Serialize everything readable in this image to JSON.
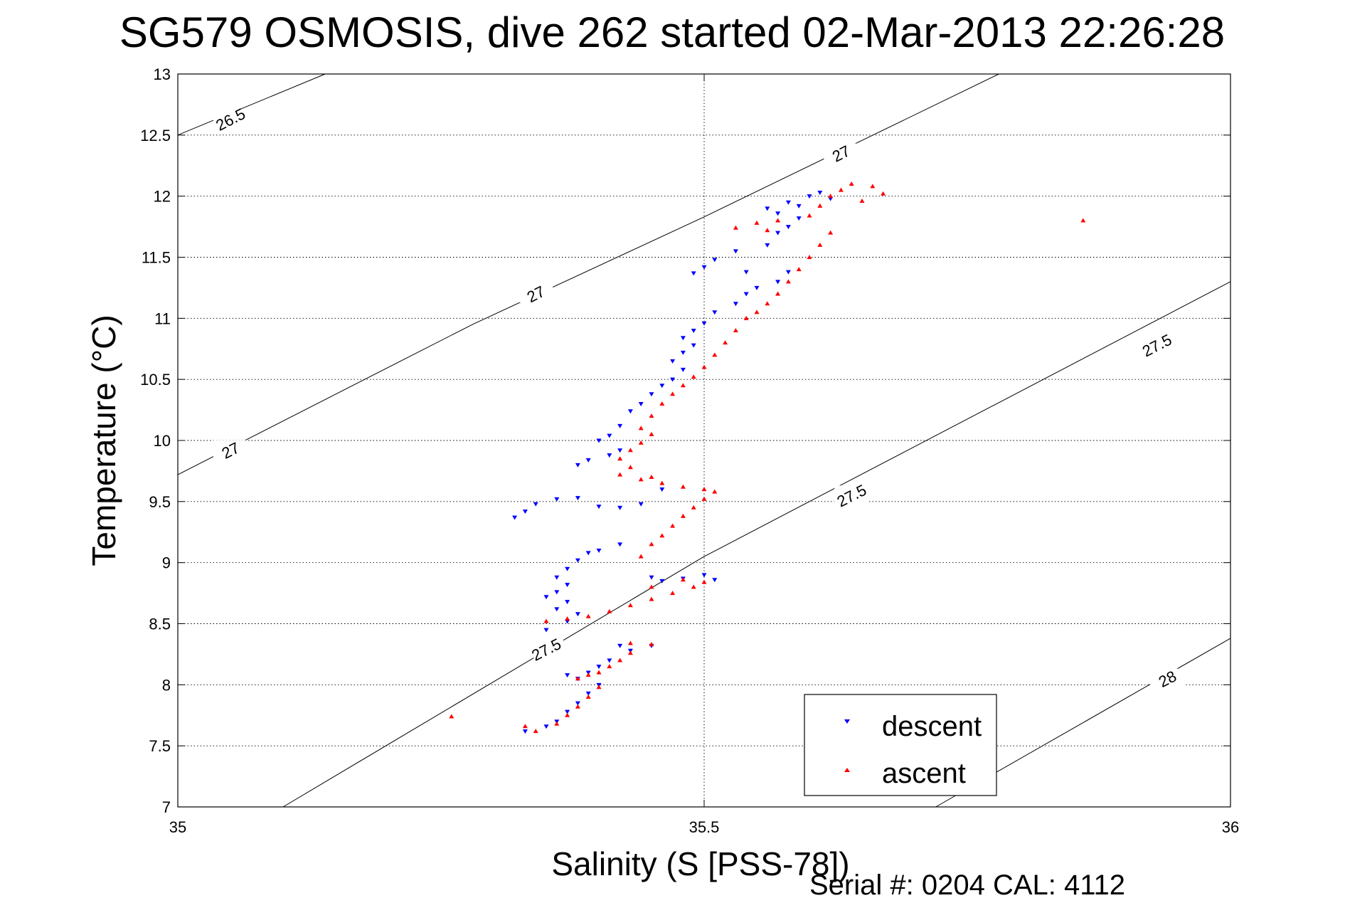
{
  "chart_data": {
    "type": "scatter",
    "title": "SG579 OSMOSIS, dive 262 started 02-Mar-2013 22:26:28",
    "xlabel": "Salinity (S [PSS-78])",
    "ylabel": "Temperature (°C)",
    "xlim": [
      35,
      36
    ],
    "ylim": [
      7,
      13
    ],
    "x_ticks": [
      "35",
      "35.5",
      "36"
    ],
    "y_ticks": [
      "7",
      "7.5",
      "8",
      "8.5",
      "9",
      "9.5",
      "10",
      "10.5",
      "11",
      "11.5",
      "12",
      "12.5",
      "13"
    ],
    "grid": true,
    "legend_position": "bottom-right",
    "footer": "Serial #: 0204  CAL: 4112",
    "density_contours": [
      {
        "level": "26.5",
        "label_positions": [
          [
            35.05,
            12.63
          ]
        ],
        "points": [
          [
            35.0,
            12.5
          ],
          [
            35.14,
            13.0
          ]
        ]
      },
      {
        "level": "27",
        "label_positions": [
          [
            35.05,
            9.92
          ],
          [
            35.34,
            11.2
          ],
          [
            35.63,
            12.35
          ]
        ],
        "points": [
          [
            35.0,
            9.72
          ],
          [
            35.28,
            10.95
          ],
          [
            35.5,
            11.83
          ],
          [
            35.78,
            13.0
          ]
        ]
      },
      {
        "level": "27.5",
        "label_positions": [
          [
            35.35,
            8.29
          ],
          [
            35.64,
            9.55
          ],
          [
            35.93,
            10.78
          ]
        ],
        "points": [
          [
            35.1,
            7.0
          ],
          [
            35.5,
            9.05
          ],
          [
            36.0,
            11.3
          ]
        ]
      },
      {
        "level": "28",
        "label_positions": [
          [
            35.94,
            8.05
          ]
        ],
        "points": [
          [
            35.72,
            7.0
          ],
          [
            36.0,
            8.38
          ]
        ]
      }
    ],
    "series": [
      {
        "name": "descent",
        "color": "#0000ff",
        "marker": "triangle-down",
        "points": [
          [
            35.33,
            7.62
          ],
          [
            35.35,
            7.66
          ],
          [
            35.36,
            7.7
          ],
          [
            35.37,
            7.78
          ],
          [
            35.38,
            7.85
          ],
          [
            35.39,
            7.93
          ],
          [
            35.4,
            8.0
          ],
          [
            35.38,
            8.05
          ],
          [
            35.37,
            8.08
          ],
          [
            35.39,
            8.1
          ],
          [
            35.4,
            8.15
          ],
          [
            35.41,
            8.2
          ],
          [
            35.43,
            8.28
          ],
          [
            35.45,
            8.32
          ],
          [
            35.42,
            8.32
          ],
          [
            35.35,
            8.45
          ],
          [
            35.37,
            8.52
          ],
          [
            35.38,
            8.58
          ],
          [
            35.36,
            8.62
          ],
          [
            35.37,
            8.68
          ],
          [
            35.35,
            8.72
          ],
          [
            35.36,
            8.76
          ],
          [
            35.37,
            8.82
          ],
          [
            35.36,
            8.88
          ],
          [
            35.37,
            8.95
          ],
          [
            35.38,
            9.02
          ],
          [
            35.39,
            9.08
          ],
          [
            35.4,
            9.1
          ],
          [
            35.42,
            9.15
          ],
          [
            35.45,
            8.88
          ],
          [
            35.5,
            8.9
          ],
          [
            35.51,
            8.86
          ],
          [
            35.48,
            8.87
          ],
          [
            35.46,
            8.85
          ],
          [
            35.32,
            9.37
          ],
          [
            35.33,
            9.42
          ],
          [
            35.34,
            9.48
          ],
          [
            35.36,
            9.52
          ],
          [
            35.38,
            9.53
          ],
          [
            35.4,
            9.46
          ],
          [
            35.42,
            9.45
          ],
          [
            35.44,
            9.48
          ],
          [
            35.46,
            9.6
          ],
          [
            35.38,
            9.8
          ],
          [
            35.39,
            9.84
          ],
          [
            35.41,
            9.88
          ],
          [
            35.42,
            9.92
          ],
          [
            35.4,
            10.0
          ],
          [
            35.41,
            10.04
          ],
          [
            35.42,
            10.12
          ],
          [
            35.43,
            10.24
          ],
          [
            35.44,
            10.3
          ],
          [
            35.45,
            10.38
          ],
          [
            35.46,
            10.45
          ],
          [
            35.47,
            10.5
          ],
          [
            35.48,
            10.58
          ],
          [
            35.47,
            10.65
          ],
          [
            35.48,
            10.72
          ],
          [
            35.49,
            10.78
          ],
          [
            35.48,
            10.84
          ],
          [
            35.49,
            10.9
          ],
          [
            35.5,
            10.96
          ],
          [
            35.51,
            11.05
          ],
          [
            35.53,
            11.12
          ],
          [
            35.54,
            11.2
          ],
          [
            35.55,
            11.25
          ],
          [
            35.57,
            11.3
          ],
          [
            35.58,
            11.38
          ],
          [
            35.54,
            11.38
          ],
          [
            35.49,
            11.37
          ],
          [
            35.5,
            11.42
          ],
          [
            35.51,
            11.48
          ],
          [
            35.53,
            11.55
          ],
          [
            35.56,
            11.6
          ],
          [
            35.57,
            11.7
          ],
          [
            35.58,
            11.75
          ],
          [
            35.59,
            11.82
          ],
          [
            35.57,
            11.86
          ],
          [
            35.56,
            11.9
          ],
          [
            35.58,
            11.95
          ],
          [
            35.6,
            12.0
          ],
          [
            35.61,
            12.03
          ],
          [
            35.62,
            11.98
          ],
          [
            35.59,
            11.92
          ]
        ]
      },
      {
        "name": "ascent",
        "color": "#ff0000",
        "marker": "triangle-up",
        "points": [
          [
            35.34,
            7.62
          ],
          [
            35.36,
            7.68
          ],
          [
            35.37,
            7.75
          ],
          [
            35.38,
            7.82
          ],
          [
            35.39,
            7.9
          ],
          [
            35.4,
            7.98
          ],
          [
            35.38,
            8.05
          ],
          [
            35.39,
            8.08
          ],
          [
            35.4,
            8.1
          ],
          [
            35.41,
            8.15
          ],
          [
            35.42,
            8.2
          ],
          [
            35.43,
            8.26
          ],
          [
            35.45,
            8.33
          ],
          [
            35.43,
            8.34
          ],
          [
            35.35,
            8.52
          ],
          [
            35.37,
            8.54
          ],
          [
            35.39,
            8.56
          ],
          [
            35.41,
            8.6
          ],
          [
            35.43,
            8.65
          ],
          [
            35.45,
            8.7
          ],
          [
            35.47,
            8.75
          ],
          [
            35.49,
            8.8
          ],
          [
            35.5,
            8.84
          ],
          [
            35.48,
            8.86
          ],
          [
            35.45,
            8.8
          ],
          [
            35.44,
            9.05
          ],
          [
            35.45,
            9.15
          ],
          [
            35.46,
            9.22
          ],
          [
            35.47,
            9.3
          ],
          [
            35.48,
            9.38
          ],
          [
            35.49,
            9.45
          ],
          [
            35.5,
            9.52
          ],
          [
            35.51,
            9.58
          ],
          [
            35.5,
            9.6
          ],
          [
            35.48,
            9.62
          ],
          [
            35.46,
            9.65
          ],
          [
            35.45,
            9.7
          ],
          [
            35.44,
            9.68
          ],
          [
            35.42,
            9.72
          ],
          [
            35.43,
            9.78
          ],
          [
            35.42,
            9.85
          ],
          [
            35.43,
            9.92
          ],
          [
            35.44,
            9.98
          ],
          [
            35.45,
            10.05
          ],
          [
            35.44,
            10.1
          ],
          [
            35.45,
            10.2
          ],
          [
            35.46,
            10.3
          ],
          [
            35.47,
            10.38
          ],
          [
            35.48,
            10.45
          ],
          [
            35.49,
            10.52
          ],
          [
            35.5,
            10.6
          ],
          [
            35.51,
            10.7
          ],
          [
            35.52,
            10.8
          ],
          [
            35.53,
            10.9
          ],
          [
            35.54,
            11.0
          ],
          [
            35.55,
            11.05
          ],
          [
            35.56,
            11.12
          ],
          [
            35.57,
            11.2
          ],
          [
            35.58,
            11.3
          ],
          [
            35.59,
            11.4
          ],
          [
            35.6,
            11.5
          ],
          [
            35.61,
            11.6
          ],
          [
            35.62,
            11.7
          ],
          [
            35.56,
            11.72
          ],
          [
            35.53,
            11.74
          ],
          [
            35.55,
            11.78
          ],
          [
            35.57,
            11.8
          ],
          [
            35.6,
            11.84
          ],
          [
            35.61,
            11.92
          ],
          [
            35.62,
            12.0
          ],
          [
            35.63,
            12.05
          ],
          [
            35.64,
            12.1
          ],
          [
            35.66,
            12.08
          ],
          [
            35.67,
            12.02
          ],
          [
            35.65,
            11.96
          ],
          [
            35.86,
            11.8
          ],
          [
            35.26,
            7.74
          ],
          [
            35.33,
            7.66
          ]
        ]
      }
    ]
  }
}
